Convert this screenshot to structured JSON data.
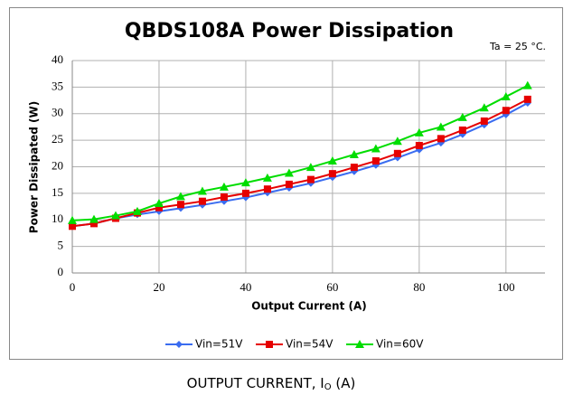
{
  "chart_data": {
    "type": "line",
    "title": "QBDS108A Power Dissipation",
    "annotation": "Ta = 25 °C.",
    "xlabel": "Output Current (A)",
    "ylabel": "Power Dissipated (W)",
    "x": [
      0,
      5,
      10,
      15,
      20,
      25,
      30,
      35,
      40,
      45,
      50,
      55,
      60,
      65,
      70,
      75,
      80,
      85,
      90,
      95,
      100,
      105
    ],
    "series": [
      {
        "name": "Vin=51V",
        "color": "#3a6cf0",
        "marker": "diamond",
        "values": [
          8.8,
          9.3,
          10.3,
          11.0,
          11.6,
          12.2,
          12.8,
          13.5,
          14.2,
          15.1,
          16.0,
          16.9,
          18.0,
          19.1,
          20.3,
          21.7,
          23.2,
          24.5,
          26.1,
          27.9,
          29.8,
          32.0
        ]
      },
      {
        "name": "Vin=54V",
        "color": "#e60000",
        "marker": "square",
        "values": [
          8.8,
          9.3,
          10.3,
          11.3,
          12.3,
          12.9,
          13.5,
          14.3,
          15.0,
          15.8,
          16.7,
          17.6,
          18.7,
          19.9,
          21.1,
          22.5,
          24.0,
          25.3,
          26.9,
          28.6,
          30.6,
          32.7
        ]
      },
      {
        "name": "Vin=60V",
        "color": "#00dd00",
        "marker": "triangle",
        "values": [
          9.9,
          10.1,
          10.8,
          11.6,
          13.1,
          14.4,
          15.4,
          16.2,
          17.0,
          17.9,
          18.8,
          19.9,
          21.1,
          22.3,
          23.4,
          24.8,
          26.4,
          27.5,
          29.3,
          31.1,
          33.2,
          35.3
        ]
      }
    ],
    "xlim": [
      0,
      109
    ],
    "xticks": [
      0,
      20,
      40,
      60,
      80,
      100
    ],
    "ylim": [
      0,
      40
    ],
    "yticks": [
      0,
      5,
      10,
      15,
      20,
      25,
      30,
      35,
      40
    ],
    "grid": true,
    "legend": "bottom"
  },
  "caption": {
    "text": "OUTPUT CURRENT, I",
    "subscript": "O",
    "suffix": " (A)"
  }
}
